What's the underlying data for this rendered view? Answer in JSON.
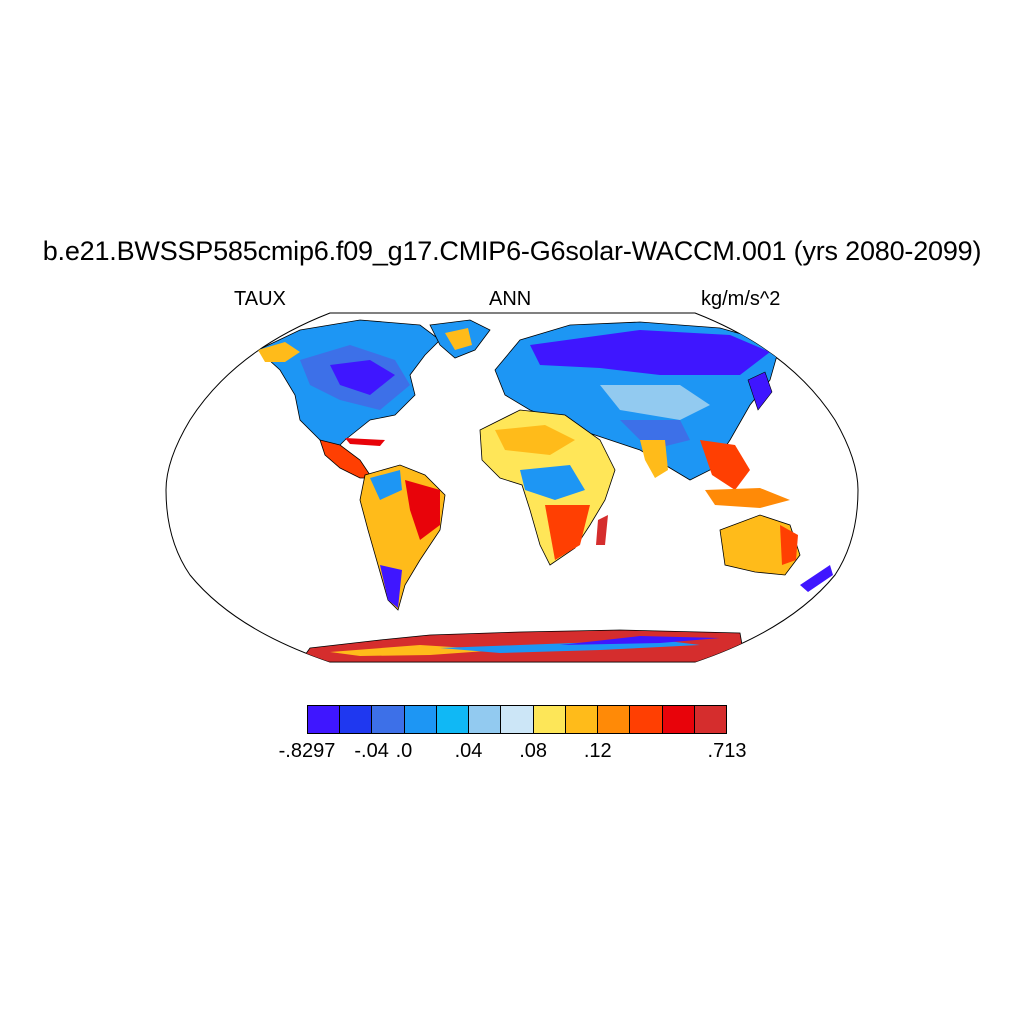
{
  "figure": {
    "title": "b.e21.BWSSP585cmip6.f09_g17.CMIP6-G6solar-WACCM.001 (yrs 2080-2099)",
    "variable": "TAUX",
    "season": "ANN",
    "units": "kg/m/s^2"
  },
  "map": {
    "projection": "Robinson",
    "field_description_colors": {
      "strong_negative": "#3f1bff",
      "negative": "#1e90ff",
      "positive": "#ffb000",
      "strong_positive": "#d62a2a"
    }
  },
  "colorbar": {
    "colors": [
      "#3f16ff",
      "#1f38f0",
      "#3d70e8",
      "#1d96f4",
      "#10b8f5",
      "#92caf0",
      "#cce6f7",
      "#fde658",
      "#ffbb1a",
      "#ff8a07",
      "#ff3f02",
      "#e8030a",
      "#d52d2d"
    ],
    "tick_labels": [
      "-.8297",
      "-.04",
      ".0",
      ".04",
      ".08",
      ".12",
      ".713"
    ],
    "tick_boundary_index": [
      0,
      2,
      3,
      5,
      7,
      9,
      13
    ]
  }
}
